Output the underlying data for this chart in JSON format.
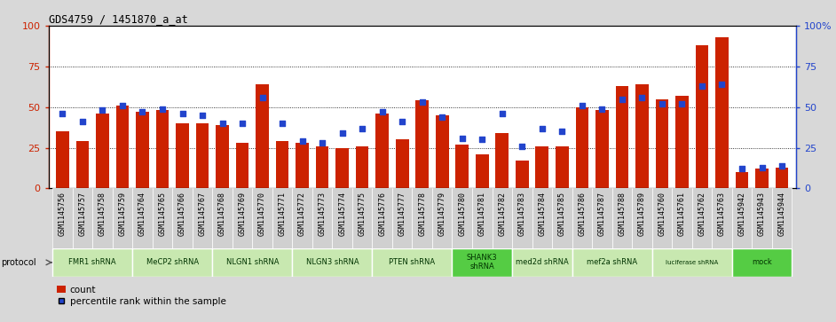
{
  "title": "GDS4759 / 1451870_a_at",
  "samples": [
    "GSM1145756",
    "GSM1145757",
    "GSM1145758",
    "GSM1145759",
    "GSM1145764",
    "GSM1145765",
    "GSM1145766",
    "GSM1145767",
    "GSM1145768",
    "GSM1145769",
    "GSM1145770",
    "GSM1145771",
    "GSM1145772",
    "GSM1145773",
    "GSM1145774",
    "GSM1145775",
    "GSM1145776",
    "GSM1145777",
    "GSM1145778",
    "GSM1145779",
    "GSM1145780",
    "GSM1145781",
    "GSM1145782",
    "GSM1145783",
    "GSM1145784",
    "GSM1145785",
    "GSM1145786",
    "GSM1145787",
    "GSM1145788",
    "GSM1145789",
    "GSM1145760",
    "GSM1145761",
    "GSM1145762",
    "GSM1145763",
    "GSM1145942",
    "GSM1145943",
    "GSM1145944"
  ],
  "bar_heights": [
    35,
    29,
    46,
    51,
    47,
    48,
    40,
    40,
    39,
    28,
    64,
    29,
    28,
    26,
    25,
    26,
    46,
    30,
    54,
    45,
    27,
    21,
    34,
    17,
    26,
    26,
    50,
    48,
    63,
    64,
    55,
    57,
    88,
    93,
    10,
    12,
    13
  ],
  "blue_values": [
    46,
    41,
    48,
    51,
    47,
    49,
    46,
    45,
    40,
    40,
    56,
    40,
    29,
    28,
    34,
    37,
    47,
    41,
    53,
    44,
    31,
    30,
    46,
    26,
    37,
    35,
    51,
    49,
    55,
    56,
    52,
    52,
    63,
    64,
    12,
    13,
    14
  ],
  "group_boundaries": [
    {
      "start": 0,
      "end": 3,
      "label": "FMR1 shRNA",
      "color": "#c8e8b0"
    },
    {
      "start": 4,
      "end": 7,
      "label": "MeCP2 shRNA",
      "color": "#c8e8b0"
    },
    {
      "start": 8,
      "end": 11,
      "label": "NLGN1 shRNA",
      "color": "#c8e8b0"
    },
    {
      "start": 12,
      "end": 15,
      "label": "NLGN3 shRNA",
      "color": "#c8e8b0"
    },
    {
      "start": 16,
      "end": 19,
      "label": "PTEN shRNA",
      "color": "#c8e8b0"
    },
    {
      "start": 20,
      "end": 22,
      "label": "SHANK3\nshRNA",
      "color": "#55cc44"
    },
    {
      "start": 23,
      "end": 25,
      "label": "med2d shRNA",
      "color": "#c8e8b0"
    },
    {
      "start": 26,
      "end": 29,
      "label": "mef2a shRNA",
      "color": "#c8e8b0"
    },
    {
      "start": 30,
      "end": 33,
      "label": "luciferase shRNA",
      "color": "#c8e8b0"
    },
    {
      "start": 34,
      "end": 36,
      "label": "mock",
      "color": "#55cc44"
    }
  ],
  "bar_color": "#cc2200",
  "blue_color": "#2244cc",
  "bg_color": "#d8d8d8",
  "plot_bg": "#ffffff",
  "left_axis_color": "#cc2200",
  "right_axis_color": "#2244cc",
  "ylim": [
    0,
    100
  ],
  "yticks": [
    0,
    25,
    50,
    75,
    100
  ],
  "grid_vals": [
    25,
    50,
    75
  ],
  "xlabel_bg": "#d0d0d0",
  "tick_label_fontsize": 6.0,
  "bar_width": 0.65
}
